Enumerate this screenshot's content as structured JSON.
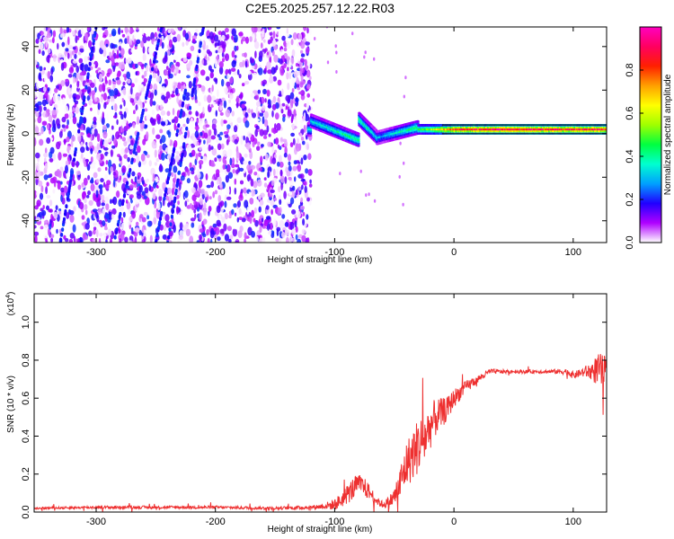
{
  "figure": {
    "title": "C2E5.2025.257.12.22.R03"
  },
  "chart_data": [
    {
      "type": "heatmap",
      "title": "C2E5.2025.257.12.22.R03",
      "xlabel": "Height of straight line (km)",
      "ylabel": "Frequency (Hz)",
      "xlim": [
        -352,
        128
      ],
      "ylim": [
        -50,
        49
      ],
      "x_ticks": [
        -300,
        -200,
        -100,
        0,
        100
      ],
      "x_tick_labels": [
        "-300",
        "-200",
        "-100",
        "0",
        "100"
      ],
      "y_ticks": [
        -40,
        -20,
        0,
        20,
        40
      ],
      "y_tick_labels": [
        "-40",
        "-20",
        "0",
        "20",
        "40"
      ],
      "colorbar": {
        "label": "Normalized spectral amplitude",
        "range": [
          0,
          1
        ],
        "ticks": [
          0,
          0.2,
          0.4,
          0.6,
          0.8
        ],
        "tick_labels": [
          "0.0",
          "0.2",
          "0.4",
          "0.6",
          "0.8"
        ],
        "colors": [
          "#ffffff",
          "#b000ff",
          "#2000ff",
          "#00a0ff",
          "#00ffd0",
          "#00ff40",
          "#a0ff00",
          "#ffff00",
          "#ffa000",
          "#ff2000",
          "#ff0060",
          "#ff00c0"
        ]
      },
      "features": {
        "noise_region_x": [
          -352,
          -120
        ],
        "noise_amplitude_range": [
          0.0,
          0.22
        ],
        "tone_frequency_hz": 2,
        "tone_amplitude_x": [
          -120,
          -80,
          -60,
          -20,
          0,
          40,
          80,
          128
        ],
        "tone_amplitude_values": [
          0.35,
          0.45,
          0.3,
          0.55,
          0.85,
          0.95,
          0.9,
          0.9
        ]
      }
    },
    {
      "type": "line",
      "xlabel": "Height of straight line (km)",
      "ylabel": "SNR (10 * v/v)",
      "y_multiplier": "(x10",
      "y_multiplier_exp": "4",
      "y_multiplier_close": ")",
      "xlim": [
        -352,
        128
      ],
      "ylim": [
        0,
        1.15
      ],
      "x_ticks": [
        -300,
        -200,
        -100,
        0,
        100
      ],
      "x_tick_labels": [
        "-300",
        "-200",
        "-100",
        "0",
        "100"
      ],
      "y_ticks": [
        0,
        0.2,
        0.4,
        0.6,
        0.8,
        1.0
      ],
      "y_tick_labels": [
        "0.0",
        "0.2",
        "0.4",
        "0.6",
        "0.8",
        "1.0"
      ],
      "series": [
        {
          "name": "SNR",
          "color": "#ee3030",
          "x": [
            -352,
            -300,
            -200,
            -150,
            -120,
            -110,
            -100,
            -95,
            -90,
            -85,
            -80,
            -75,
            -70,
            -65,
            -60,
            -55,
            -50,
            -45,
            -40,
            -35,
            -30,
            -25,
            -20,
            -15,
            -10,
            -5,
            0,
            5,
            10,
            15,
            20,
            25,
            30,
            40,
            50,
            60,
            70,
            80,
            90,
            95,
            100,
            105,
            110,
            115,
            120,
            125,
            128
          ],
          "values": [
            0.02,
            0.025,
            0.025,
            0.02,
            0.025,
            0.03,
            0.04,
            0.06,
            0.09,
            0.12,
            0.15,
            0.13,
            0.1,
            0.06,
            0.04,
            0.05,
            0.08,
            0.15,
            0.25,
            0.3,
            0.35,
            0.38,
            0.45,
            0.5,
            0.52,
            0.55,
            0.6,
            0.63,
            0.66,
            0.68,
            0.7,
            0.72,
            0.74,
            0.74,
            0.74,
            0.74,
            0.74,
            0.74,
            0.74,
            0.74,
            0.72,
            0.73,
            0.74,
            0.74,
            0.75,
            0.74,
            0.74
          ],
          "noise": [
            0.005,
            0.008,
            0.008,
            0.008,
            0.01,
            0.015,
            0.03,
            0.04,
            0.05,
            0.06,
            0.05,
            0.05,
            0.04,
            0.02,
            0.02,
            0.03,
            0.05,
            0.1,
            0.12,
            0.14,
            0.15,
            0.14,
            0.12,
            0.1,
            0.08,
            0.06,
            0.05,
            0.04,
            0.03,
            0.03,
            0.02,
            0.02,
            0.015,
            0.01,
            0.01,
            0.01,
            0.01,
            0.01,
            0.015,
            0.015,
            0.02,
            0.02,
            0.03,
            0.05,
            0.08,
            0.1,
            0.06
          ]
        }
      ]
    }
  ]
}
